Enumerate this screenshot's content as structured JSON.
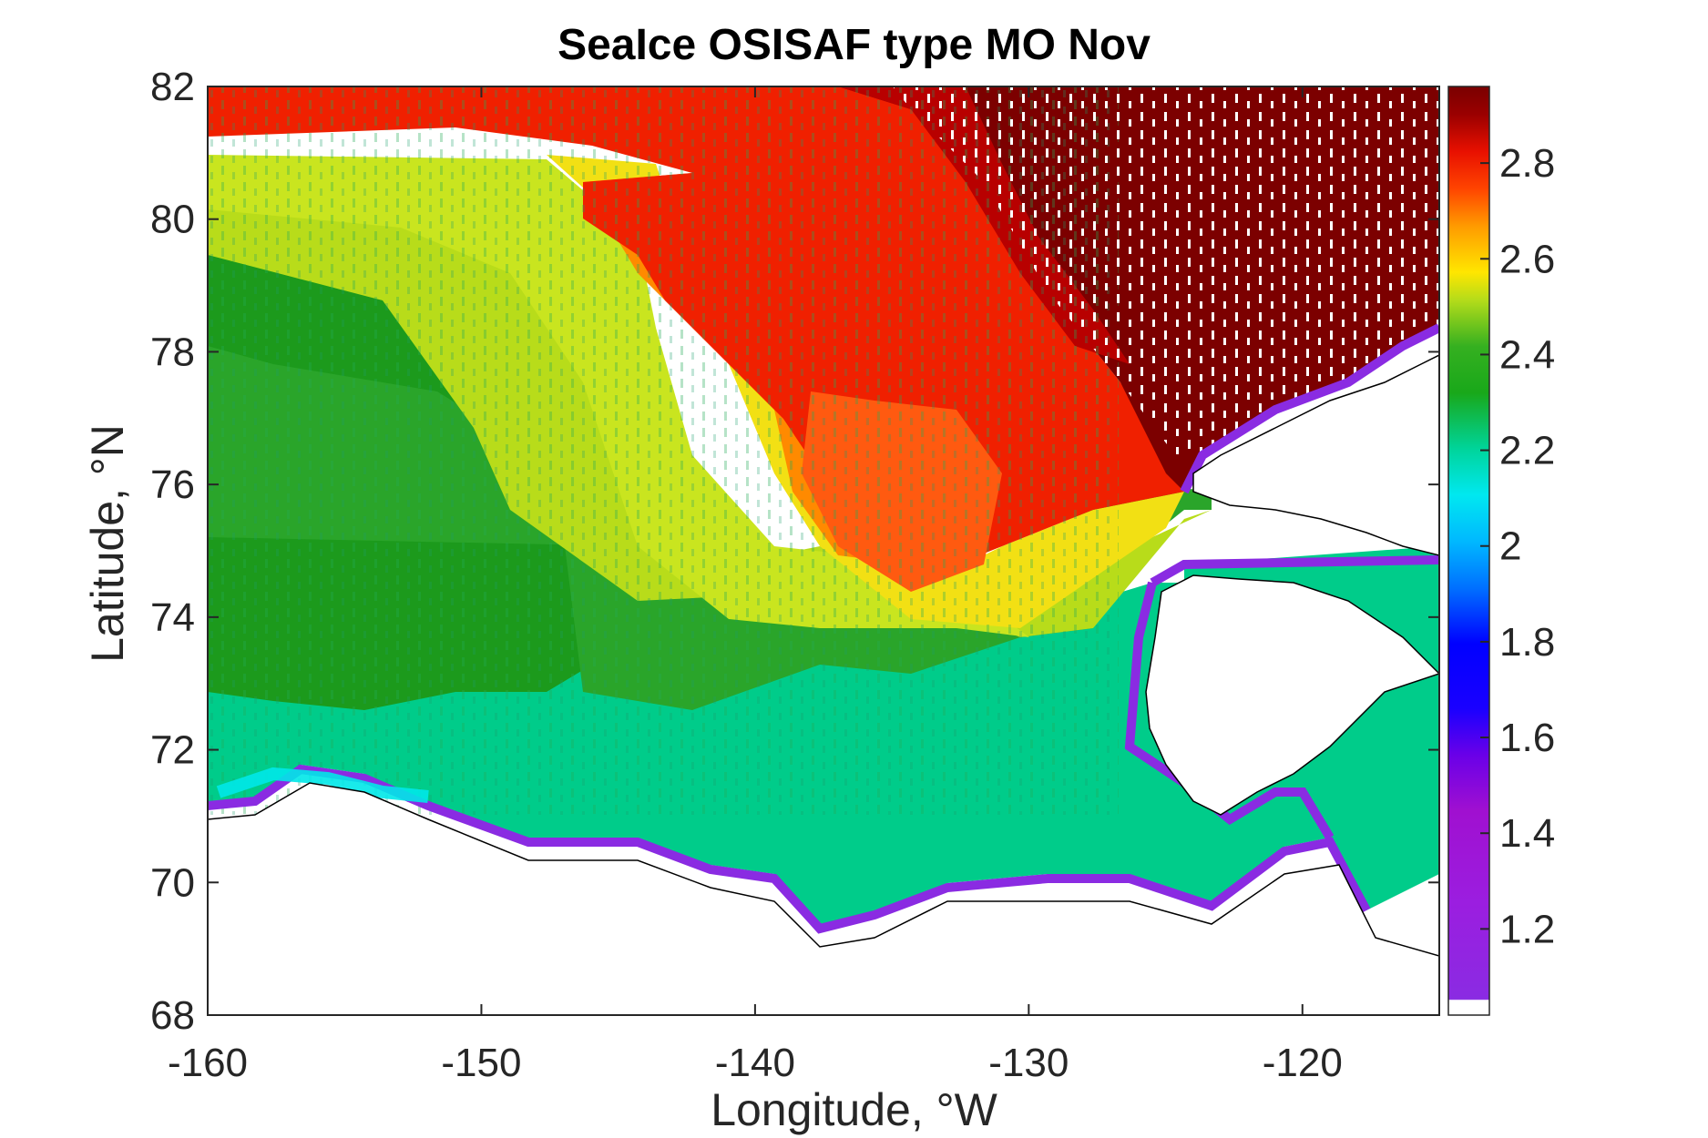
{
  "chart_data": {
    "type": "heatmap",
    "title": "SeaIce OSISAF type MO Nov",
    "xlabel": "Longitude, °W",
    "ylabel": "Latitude, °N",
    "xlim": [
      -160,
      -115
    ],
    "ylim": [
      68,
      82
    ],
    "xticks": [
      -160,
      -150,
      -140,
      -130,
      -120
    ],
    "yticks": [
      68,
      70,
      72,
      74,
      76,
      78,
      80,
      82
    ],
    "colorbar": {
      "range": [
        1.02,
        2.96
      ],
      "ticks": [
        1.2,
        1.4,
        1.6,
        1.8,
        2,
        2.2,
        2.4,
        2.6,
        2.8
      ],
      "colormap": [
        "#ffffff",
        "#8a2be2",
        "#a018d8",
        "#5a00e8",
        "#0000ff",
        "#0080ff",
        "#00e0ff",
        "#00d09a",
        "#1aa51a",
        "#4cb81a",
        "#c8e61a",
        "#ffe600",
        "#ff9900",
        "#ff3300",
        "#ee1100",
        "#7a0000"
      ]
    },
    "grid": false,
    "field_description_regions": [
      {
        "region": "north-east (lat 78-82, lon -135 to -115)",
        "value": 2.95
      },
      {
        "region": "north-central red band (lat 76-82, lon -145 to -128)",
        "value": 2.7
      },
      {
        "region": "orange patch (lat 74.5-78, lon -145 to -133)",
        "value": 2.5
      },
      {
        "region": "yellow-green (lat 73.5-80.5, lon -160 to -140)",
        "value": 2.35
      },
      {
        "region": "dark green west (lat 72.5-79.5, lon -160 to -145)",
        "value": 2.15
      },
      {
        "region": "teal coastal shelf (lat 69.5-74, lon -160 to -120)",
        "value": 2.0
      },
      {
        "region": "coastal fringe",
        "value": 1.3
      }
    ]
  }
}
